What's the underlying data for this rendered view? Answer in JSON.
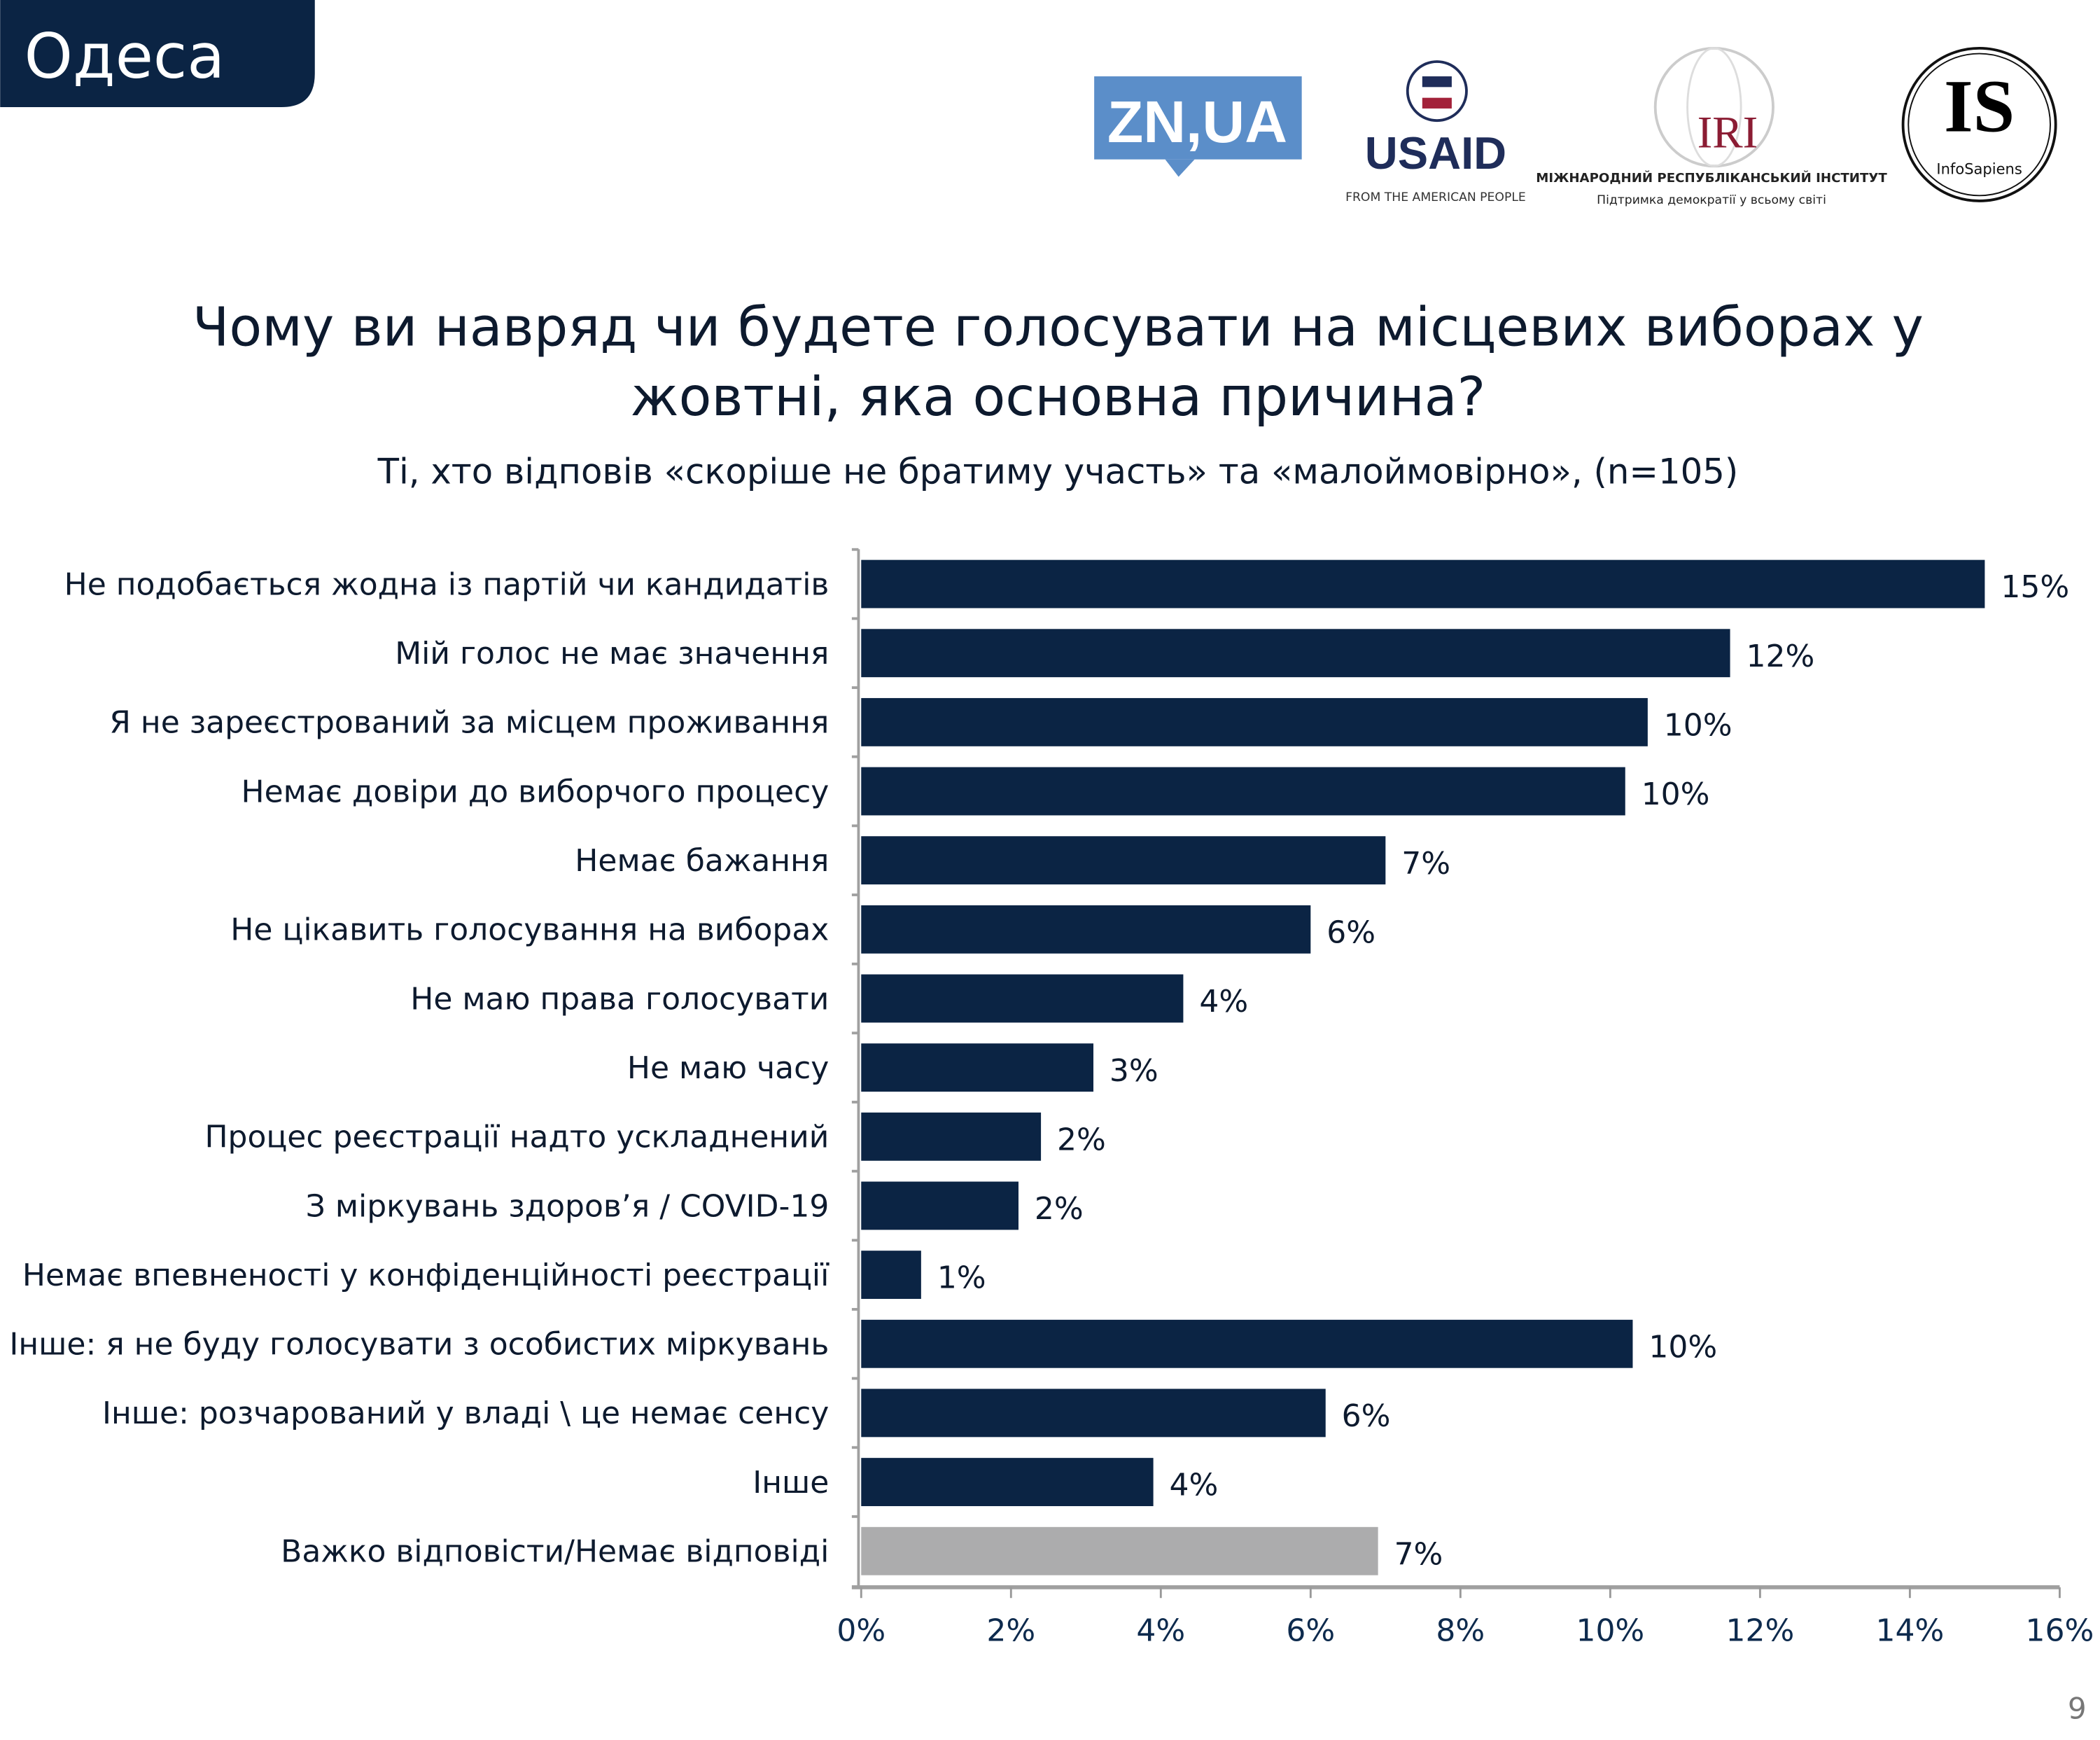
{
  "header": {
    "region": "Одеса",
    "page_number": "9"
  },
  "logos": {
    "znua": "ZN,UA",
    "usaid": {
      "name": "USAID",
      "tagline": "FROM THE AMERICAN PEOPLE"
    },
    "iri": {
      "name": "IRI",
      "line1": "МІЖНАРОДНИЙ РЕСПУБЛІКАНСЬКИЙ ІНСТИТУТ",
      "line2": "Підтримка демократії у всьому світі"
    },
    "infosapiens": {
      "name": "IS",
      "sub": "InfoSapiens"
    }
  },
  "colors": {
    "primary_bar": "#0b2444",
    "secondary_bar": "#acacad",
    "header_bg": "#0b2444"
  },
  "chart_data": {
    "type": "bar",
    "orientation": "horizontal",
    "title": "Чому ви навряд чи будете голосувати на місцевих виборах у жовтні, яка основна причина?",
    "title_lines": [
      "Чому ви навряд чи будете голосувати на місцевих виборах у",
      "жовтні, яка основна причина?"
    ],
    "subtitle": "Ті, хто відповів «скоріше не братиму участь» та «малоймовірно», (n=105)",
    "xlim": [
      0,
      16
    ],
    "xticks": [
      "0%",
      "2%",
      "4%",
      "6%",
      "8%",
      "10%",
      "12%",
      "14%",
      "16%"
    ],
    "grid": false,
    "categories": [
      "Не подобається жодна із партій чи кандидатів",
      "Мій голос не має значення",
      "Я не зареєстрований за місцем проживання",
      "Немає довіри до виборчого процесу",
      "Немає бажання",
      "Не цікавить голосування на виборах",
      "Не маю права голосувати",
      "Не маю часу",
      "Процес реєстрації надто ускладнений",
      "З міркувань здоров’я / COVID-19",
      "Немає впевненості у конфіденційності реєстрації",
      "Інше: я не буду голосувати з особистих міркувань",
      "Інше: розчарований у владі \\ це немає сенсу",
      "Інше",
      "Важко відповісти/Немає відповіді"
    ],
    "values": [
      15.0,
      11.6,
      10.5,
      10.2,
      7.0,
      6.0,
      4.3,
      3.1,
      2.4,
      2.1,
      0.8,
      10.3,
      6.2,
      3.9,
      6.9
    ],
    "data_labels": [
      "15%",
      "12%",
      "10%",
      "10%",
      "7%",
      "6%",
      "4%",
      "3%",
      "2%",
      "2%",
      "1%",
      "10%",
      "6%",
      "4%",
      "7%"
    ],
    "bar_colors": [
      "#0b2444",
      "#0b2444",
      "#0b2444",
      "#0b2444",
      "#0b2444",
      "#0b2444",
      "#0b2444",
      "#0b2444",
      "#0b2444",
      "#0b2444",
      "#0b2444",
      "#0b2444",
      "#0b2444",
      "#0b2444",
      "#acacad"
    ]
  }
}
